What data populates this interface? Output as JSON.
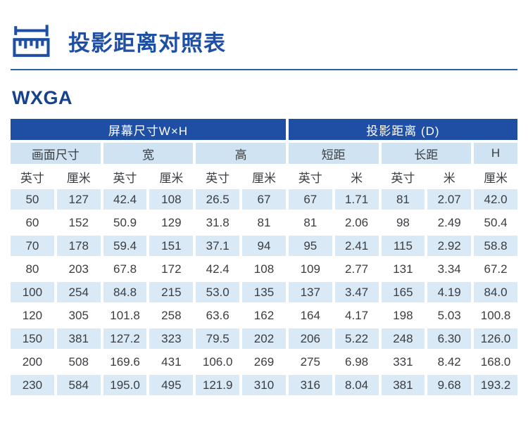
{
  "page": {
    "title": "投影距离对照表",
    "section_label": "WXGA"
  },
  "icons": {
    "header_icon": "ruler-icon"
  },
  "colors": {
    "primary_blue": "#1e4fa5",
    "divider_blue": "#2d61ad",
    "section_blue": "#16418c",
    "group_bg": "#cfe3f3",
    "row_bg": "#d9e9f6",
    "text_dark": "#3a3d42",
    "band_text": "#ffffff"
  },
  "table": {
    "top_headers": [
      {
        "label": "屏幕尺寸W×H",
        "colspan": 6
      },
      {
        "label": "投影距离 (D)",
        "colspan": 5
      }
    ],
    "group_headers": [
      {
        "label": "画面尺寸",
        "colspan": 2
      },
      {
        "label": "宽",
        "colspan": 2
      },
      {
        "label": "高",
        "colspan": 2
      },
      {
        "label": "短距",
        "colspan": 2
      },
      {
        "label": "长距",
        "colspan": 2
      },
      {
        "label": "H",
        "colspan": 1
      }
    ],
    "unit_headers": [
      "英寸",
      "厘米",
      "英寸",
      "厘米",
      "英寸",
      "厘米",
      "英寸",
      "米",
      "英寸",
      "米",
      "厘米"
    ],
    "rows": [
      [
        "50",
        "127",
        "42.4",
        "108",
        "26.5",
        "67",
        "67",
        "1.71",
        "81",
        "2.07",
        "42.0"
      ],
      [
        "60",
        "152",
        "50.9",
        "129",
        "31.8",
        "81",
        "81",
        "2.06",
        "98",
        "2.49",
        "50.4"
      ],
      [
        "70",
        "178",
        "59.4",
        "151",
        "37.1",
        "94",
        "95",
        "2.41",
        "115",
        "2.92",
        "58.8"
      ],
      [
        "80",
        "203",
        "67.8",
        "172",
        "42.4",
        "108",
        "109",
        "2.77",
        "131",
        "3.34",
        "67.2"
      ],
      [
        "100",
        "254",
        "84.8",
        "215",
        "53.0",
        "135",
        "137",
        "3.47",
        "165",
        "4.19",
        "84.0"
      ],
      [
        "120",
        "305",
        "101.8",
        "258",
        "63.6",
        "162",
        "164",
        "4.17",
        "198",
        "5.03",
        "100.8"
      ],
      [
        "150",
        "381",
        "127.2",
        "323",
        "79.5",
        "202",
        "206",
        "5.22",
        "248",
        "6.30",
        "126.0"
      ],
      [
        "200",
        "508",
        "169.6",
        "431",
        "106.0",
        "269",
        "275",
        "6.98",
        "331",
        "8.42",
        "168.0"
      ],
      [
        "230",
        "584",
        "195.0",
        "495",
        "121.9",
        "310",
        "316",
        "8.04",
        "381",
        "9.68",
        "193.2"
      ]
    ]
  }
}
